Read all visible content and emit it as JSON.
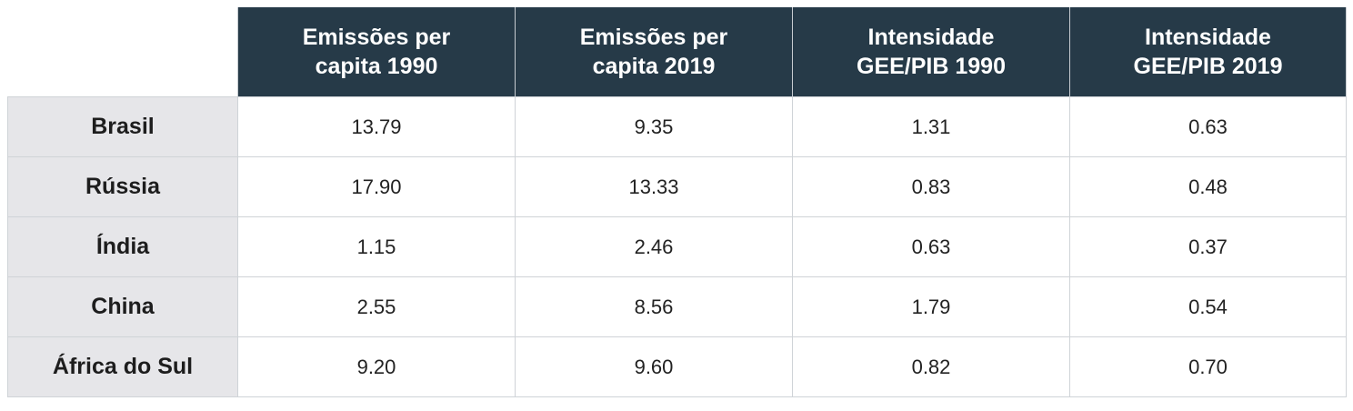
{
  "chart_data": {
    "type": "table",
    "columns": [
      "Emissões per capita 1990",
      "Emissões per capita 2019",
      "Intensidade GEE/PIB 1990",
      "Intensidade GEE/PIB 2019"
    ],
    "column_lines": [
      [
        "Emissões per",
        "capita 1990"
      ],
      [
        "Emissões per",
        "capita 2019"
      ],
      [
        "Intensidade",
        "GEE/PIB 1990"
      ],
      [
        "Intensidade",
        "GEE/PIB 2019"
      ]
    ],
    "rows": [
      {
        "label": "Brasil",
        "values": [
          "13.79",
          "9.35",
          "1.31",
          "0.63"
        ]
      },
      {
        "label": "Rússia",
        "values": [
          "17.90",
          "13.33",
          "0.83",
          "0.48"
        ]
      },
      {
        "label": "Índia",
        "values": [
          "1.15",
          "2.46",
          "0.63",
          "0.37"
        ]
      },
      {
        "label": "China",
        "values": [
          "2.55",
          "8.56",
          "1.79",
          "0.54"
        ]
      },
      {
        "label": "África do Sul",
        "values": [
          "9.20",
          "9.60",
          "0.82",
          "0.70"
        ]
      }
    ]
  },
  "colors": {
    "header_background": "#263a48",
    "header_text": "#ffffff",
    "row_label_background": "#e6e6e9",
    "border": "#cfd3d7"
  }
}
